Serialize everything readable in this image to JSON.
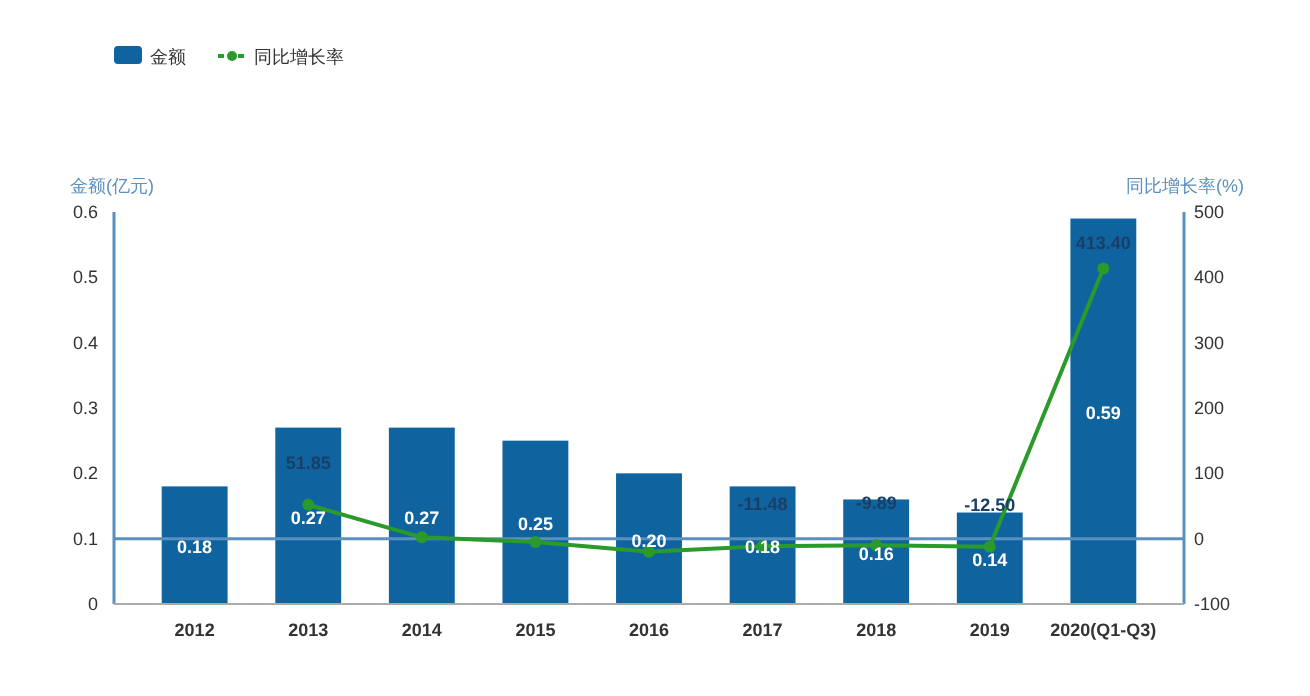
{
  "chart_data": {
    "type": "bar",
    "ylabel": "金额(亿元)",
    "y2label": "同比增长率(%)",
    "categories": [
      "2012",
      "2013",
      "2014",
      "2015",
      "2016",
      "2017",
      "2018",
      "2019",
      "2020(Q1-Q3)"
    ],
    "series": [
      {
        "name": "金额",
        "color": "#0f64a0",
        "values": [
          0.18,
          0.27,
          0.27,
          0.25,
          0.2,
          0.18,
          0.16,
          0.14,
          0.59
        ],
        "value_labels": [
          "0.18",
          "0.27",
          "0.27",
          "0.25",
          "0.20",
          "0.18",
          "0.16",
          "0.14",
          "0.59"
        ]
      },
      {
        "name": "同比增长率",
        "type": "line",
        "axis": "y2",
        "color": "#2a9a2a",
        "values": [
          null,
          51.85,
          2,
          -5,
          -20,
          -11.48,
          -9.89,
          -12.5,
          413.4
        ],
        "value_labels": [
          null,
          "51.85",
          null,
          null,
          null,
          "-11.48",
          "-9.89",
          "-12.50",
          "413.40"
        ]
      }
    ],
    "ylim": [
      0,
      0.6
    ],
    "yticks": [
      0,
      0.1,
      0.2,
      0.3,
      0.4,
      0.5,
      0.6
    ],
    "y2lim": [
      -100,
      500
    ],
    "y2ticks": [
      -100,
      0,
      100,
      200,
      300,
      400,
      500
    ],
    "ref_lines": [
      {
        "axis": "y2",
        "value": 0,
        "color": "#5b8fc0"
      }
    ],
    "legend": "top left",
    "marker": "circle",
    "grid": false
  }
}
